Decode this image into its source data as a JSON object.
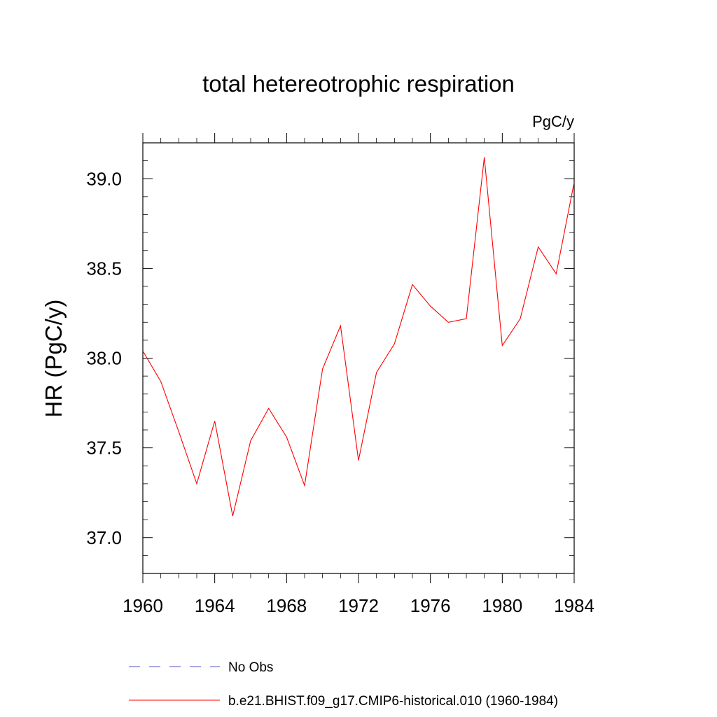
{
  "chart_data": {
    "type": "line",
    "title": "total hetereotrophic respiration",
    "units": "PgC/y",
    "ylabel": "HR  (PgC/y)",
    "xlabel": "",
    "xlim": [
      1960,
      1984
    ],
    "ylim": [
      36.8,
      39.2
    ],
    "x_ticks": [
      1960,
      1964,
      1968,
      1972,
      1976,
      1980,
      1984
    ],
    "y_ticks": [
      37.0,
      37.5,
      38.0,
      38.5,
      39.0
    ],
    "y_tick_labels": [
      "37.0",
      "37.5",
      "38.0",
      "38.5",
      "39.0"
    ],
    "grid": false,
    "series": [
      {
        "name": "b.e21.BHIST.f09_g17.CMIP6-historical.010 (1960-1984)",
        "color": "#ff0000",
        "x": [
          1960,
          1961,
          1962,
          1963,
          1964,
          1965,
          1966,
          1967,
          1968,
          1969,
          1970,
          1971,
          1972,
          1973,
          1974,
          1975,
          1976,
          1977,
          1978,
          1979,
          1980,
          1981,
          1982,
          1983,
          1984
        ],
        "y": [
          38.04,
          37.87,
          37.59,
          37.3,
          37.65,
          37.12,
          37.54,
          37.72,
          37.56,
          37.29,
          37.94,
          38.18,
          37.43,
          37.92,
          38.08,
          38.41,
          38.29,
          38.2,
          38.22,
          39.12,
          38.07,
          38.22,
          38.62,
          38.47,
          38.98
        ]
      }
    ],
    "legend": {
      "position": "bottom",
      "entries": [
        {
          "label": "No Obs",
          "color": "#5050c8",
          "style": "dashed"
        },
        {
          "label": "b.e21.BHIST.f09_g17.CMIP6-historical.010 (1960-1984)",
          "color": "#ff0000",
          "style": "solid"
        }
      ]
    }
  }
}
